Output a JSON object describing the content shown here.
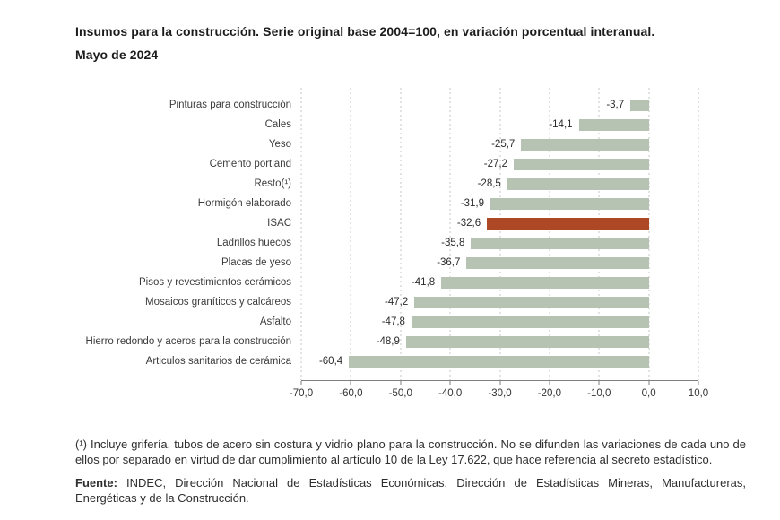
{
  "header": {
    "title_line1": "Insumos para la construcción. Serie original base 2004=100, en variación porcentual interanual.",
    "title_line2": "Mayo de 2024"
  },
  "chart_data": {
    "type": "bar",
    "orientation": "horizontal",
    "title": "Insumos para la construcción. Serie original base 2004=100, en variación porcentual interanual. Mayo de 2024",
    "categories": [
      "Pinturas para construcción",
      "Cales",
      "Yeso",
      "Cemento portland",
      "Resto(¹)",
      "Hormigón elaborado",
      "ISAC",
      "Ladrillos huecos",
      "Placas de yeso",
      "Pisos y revestimientos cerámicos",
      "Mosaicos graníticos y calcáreos",
      "Asfalto",
      "Hierro redondo y aceros para la construcción",
      "Articulos sanitarios de cerámica"
    ],
    "values": [
      -3.7,
      -14.1,
      -25.7,
      -27.2,
      -28.5,
      -31.9,
      -32.6,
      -35.8,
      -36.7,
      -41.8,
      -47.2,
      -47.8,
      -48.9,
      -60.4
    ],
    "value_labels": [
      "-3,7",
      "-14,1",
      "-25,7",
      "-27,2",
      "-28,5",
      "-31,9",
      "-32,6",
      "-35,8",
      "-36,7",
      "-41,8",
      "-47,2",
      "-47,8",
      "-48,9",
      "-60,4"
    ],
    "highlight_category": "ISAC",
    "highlight_index": 6,
    "xlim": [
      -70,
      10
    ],
    "xtick_values": [
      -70,
      -60,
      -50,
      -40,
      -30,
      -20,
      -10,
      0,
      10
    ],
    "xtick_labels": [
      "-70,0",
      "-60,0",
      "-50,0",
      "-40,0",
      "-30,0",
      "-20,0",
      "-10,0",
      "0,0",
      "10,0"
    ],
    "grid": "vertical-dashed",
    "legend": "none",
    "colors": {
      "bar": "#b6c3b2",
      "highlight": "#ae4726",
      "grid": "#c7c7c7",
      "axis": "#7f7f7f"
    }
  },
  "notes": {
    "footnote": "(¹) Incluye grifería, tubos de acero sin costura y vidrio plano para la construcción. No se difunden las variaciones de cada uno de ellos por separado en virtud de dar cumplimiento al artículo 10 de la Ley 17.622, que hace referencia al secreto estadístico.",
    "source_label": "Fuente:",
    "source_text": "INDEC, Dirección Nacional de Estadísticas Económicas. Dirección de Estadísticas Mineras, Manufactureras, Energéticas y de la Construcción."
  }
}
